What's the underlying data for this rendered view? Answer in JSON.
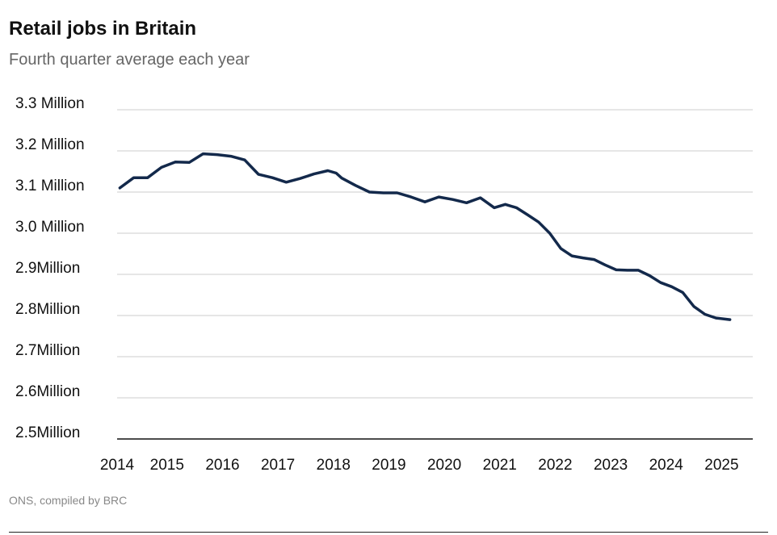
{
  "title": "Retail jobs in Britain",
  "subtitle": "Fourth quarter average each year",
  "source": "ONS, compiled by BRC",
  "colors": {
    "line": "#13294b",
    "grid": "#cccccc",
    "axis": "#111111"
  },
  "chart_data": {
    "type": "line",
    "title": "Retail jobs in Britain",
    "subtitle": "Fourth quarter average each year",
    "xlabel": "",
    "ylabel": "",
    "ylim": [
      2.5,
      3.3
    ],
    "yticks": [
      {
        "value": 3.3,
        "label": "3.3 Million"
      },
      {
        "value": 3.2,
        "label": "3.2 Million"
      },
      {
        "value": 3.1,
        "label": "3.1 Million"
      },
      {
        "value": 3.0,
        "label": "3.0 Million"
      },
      {
        "value": 2.9,
        "label": "2.9Million"
      },
      {
        "value": 2.8,
        "label": "2.8Million"
      },
      {
        "value": 2.7,
        "label": "2.7Million"
      },
      {
        "value": 2.6,
        "label": "2.6Million"
      },
      {
        "value": 2.5,
        "label": "2.5Million"
      }
    ],
    "xticks": [
      {
        "value": 2014.0,
        "label": "2014"
      },
      {
        "value": 2014.9,
        "label": "2015"
      },
      {
        "value": 2015.9,
        "label": "2016"
      },
      {
        "value": 2016.9,
        "label": "2017"
      },
      {
        "value": 2017.9,
        "label": "2018"
      },
      {
        "value": 2018.9,
        "label": "2019"
      },
      {
        "value": 2019.9,
        "label": "2020"
      },
      {
        "value": 2020.9,
        "label": "2021"
      },
      {
        "value": 2021.9,
        "label": "2022"
      },
      {
        "value": 2022.9,
        "label": "2023"
      },
      {
        "value": 2023.9,
        "label": "2024"
      },
      {
        "value": 2024.9,
        "label": "2025"
      }
    ],
    "xrange": [
      2014.0,
      2025.2
    ],
    "grid": true,
    "series": [
      {
        "name": "Retail jobs",
        "x": [
          2014.05,
          2014.3,
          2014.55,
          2014.8,
          2015.05,
          2015.3,
          2015.55,
          2015.8,
          2016.05,
          2016.3,
          2016.55,
          2016.8,
          2017.05,
          2017.3,
          2017.55,
          2017.8,
          2017.95,
          2018.05,
          2018.3,
          2018.55,
          2018.8,
          2019.05,
          2019.3,
          2019.55,
          2019.8,
          2020.05,
          2020.3,
          2020.55,
          2020.8,
          2021.0,
          2021.2,
          2021.4,
          2021.6,
          2021.8,
          2022.0,
          2022.2,
          2022.4,
          2022.6,
          2022.8,
          2023.0,
          2023.2,
          2023.4,
          2023.6,
          2023.8,
          2024.0,
          2024.2,
          2024.4,
          2024.6,
          2024.8,
          2025.05
        ],
        "values": [
          3.11,
          3.135,
          3.135,
          3.16,
          3.173,
          3.172,
          3.193,
          3.191,
          3.187,
          3.178,
          3.143,
          3.135,
          3.124,
          3.133,
          3.144,
          3.152,
          3.146,
          3.134,
          3.116,
          3.1,
          3.098,
          3.098,
          3.088,
          3.076,
          3.088,
          3.082,
          3.074,
          3.086,
          3.062,
          3.07,
          3.062,
          3.045,
          3.027,
          3.0,
          2.963,
          2.945,
          2.94,
          2.936,
          2.923,
          2.911,
          2.91,
          2.91,
          2.897,
          2.88,
          2.87,
          2.856,
          2.822,
          2.803,
          2.794,
          2.79
        ]
      }
    ]
  }
}
